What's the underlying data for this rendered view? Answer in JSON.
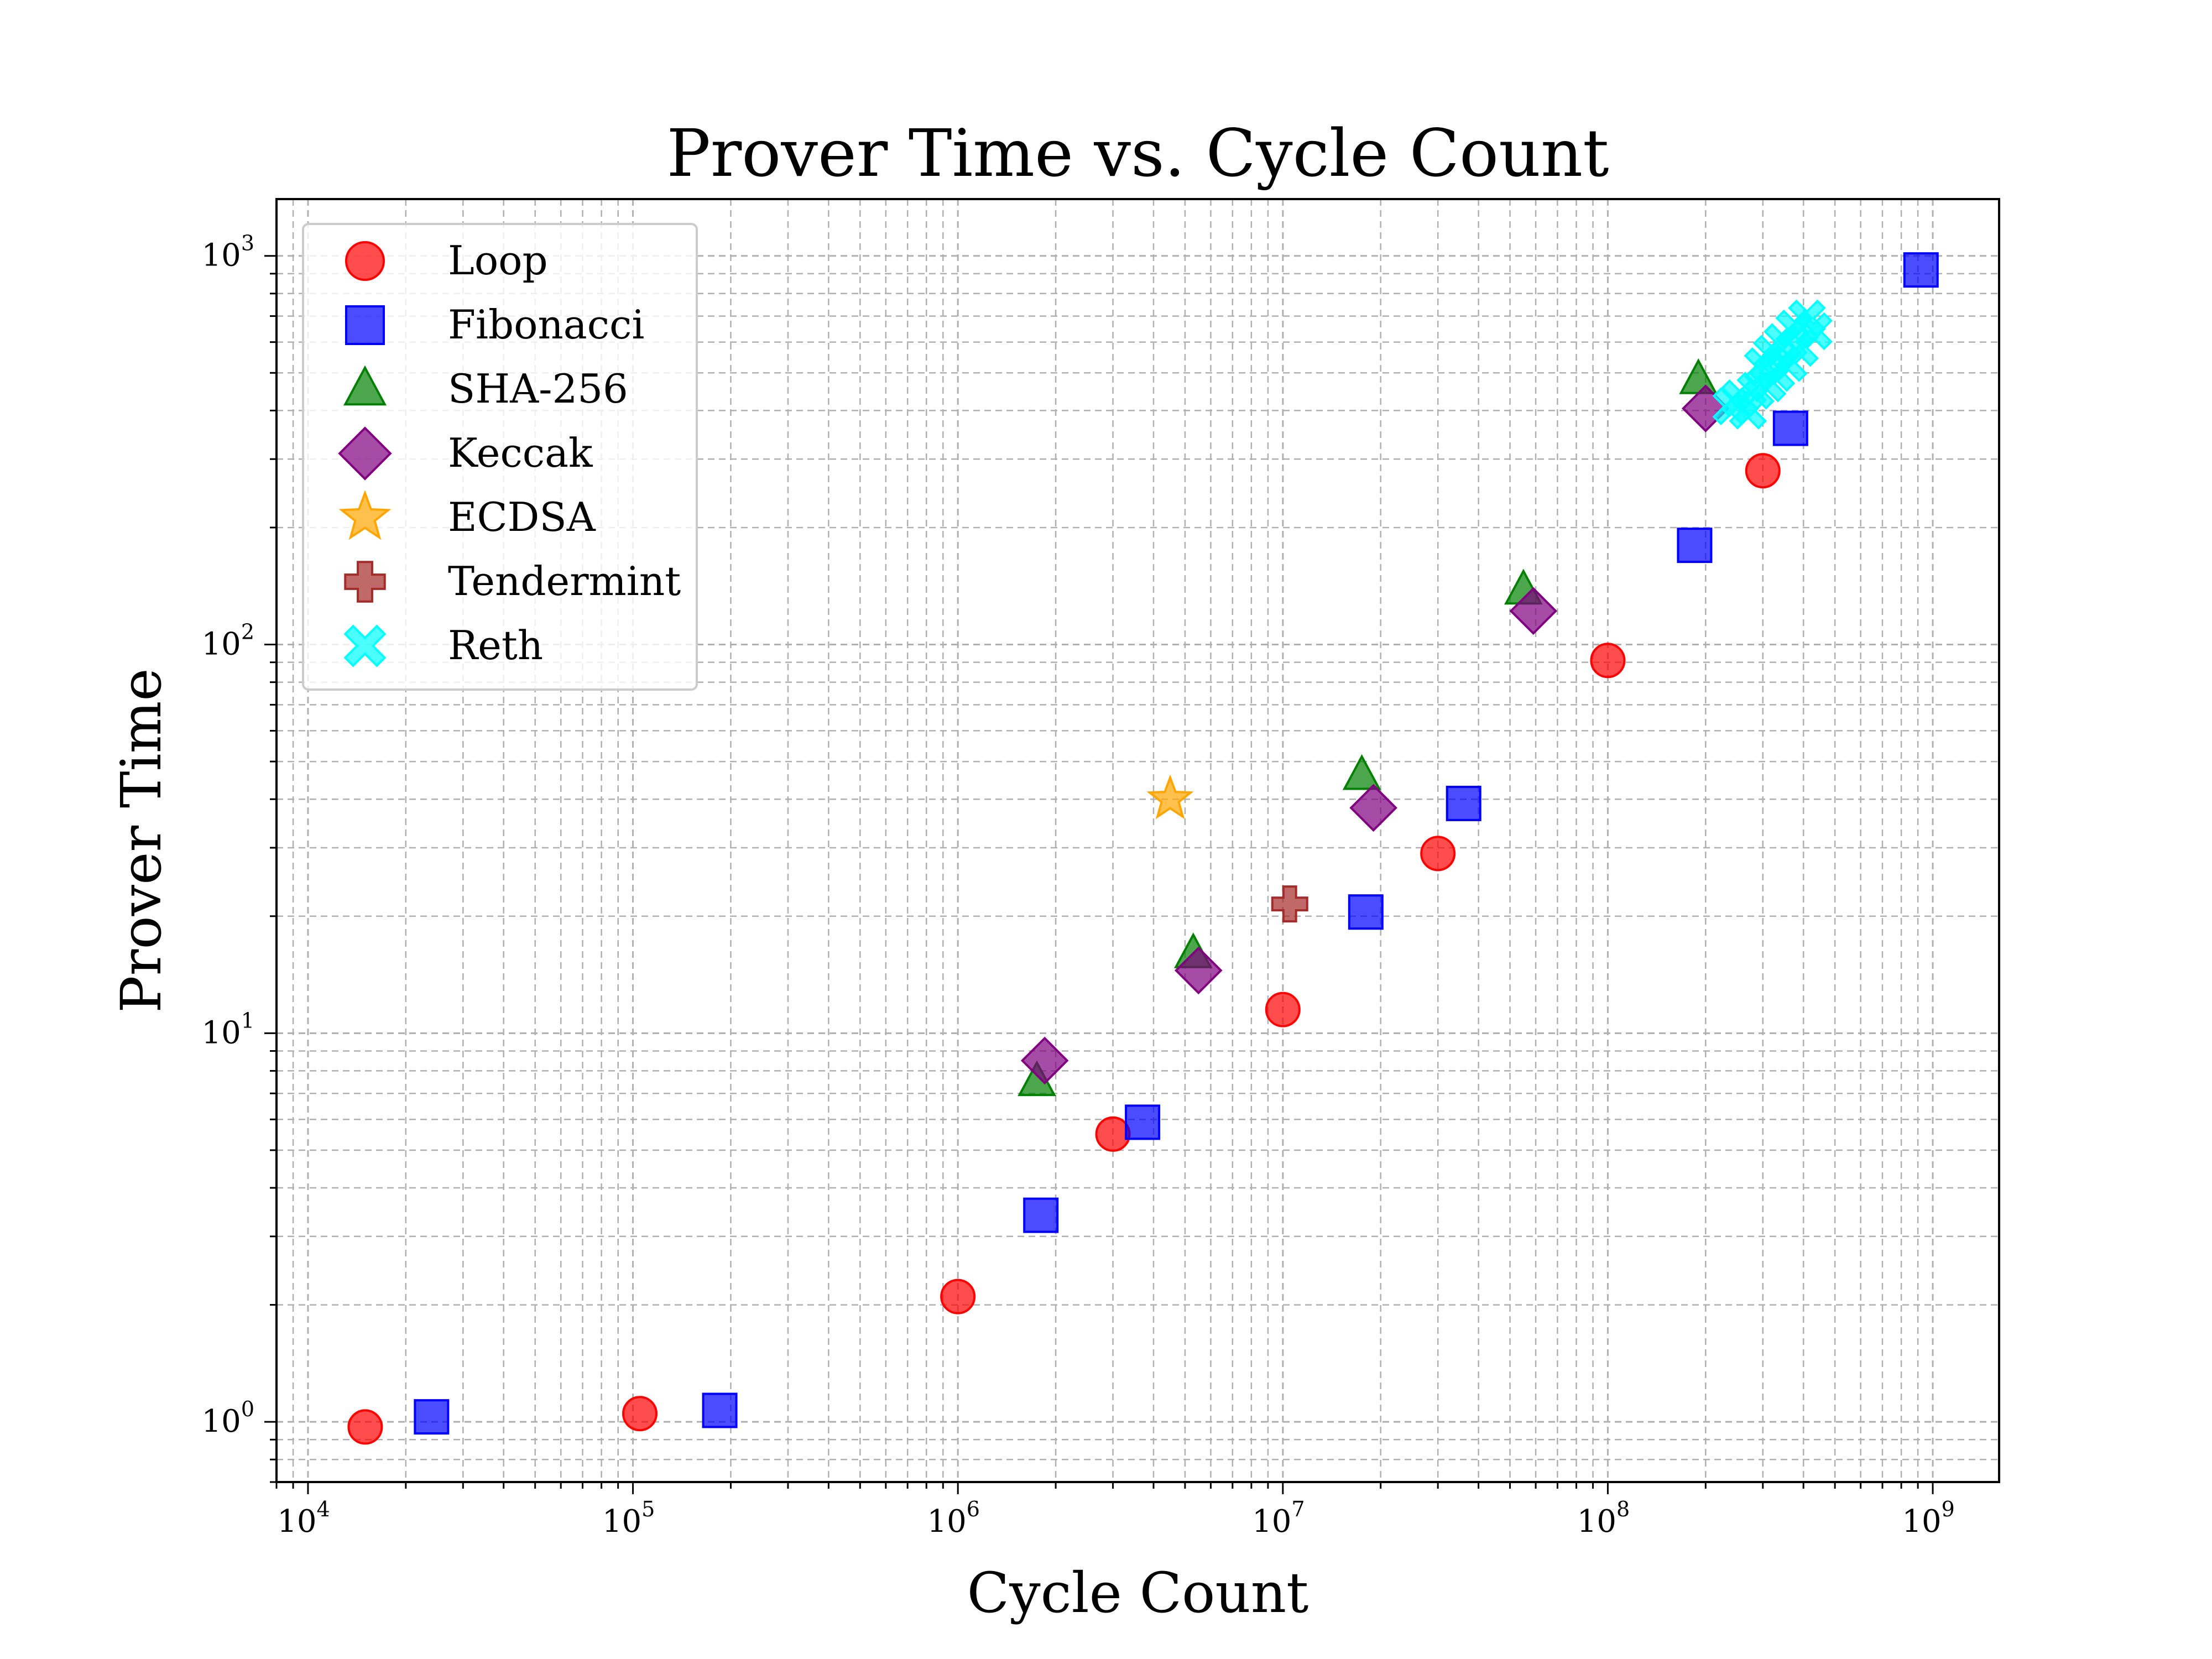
{
  "chart_data": {
    "type": "scatter",
    "title": "Prover Time vs. Cycle Count",
    "xlabel": "Cycle Count",
    "ylabel": "Prover Time",
    "x_scale": "log",
    "y_scale": "log",
    "xlim": [
      8000,
      1600000000
    ],
    "ylim": [
      0.7,
      1400
    ],
    "x_ticks": [
      {
        "base": "10",
        "exp": "4",
        "value": 10000
      },
      {
        "base": "10",
        "exp": "5",
        "value": 100000
      },
      {
        "base": "10",
        "exp": "6",
        "value": 1000000
      },
      {
        "base": "10",
        "exp": "7",
        "value": 10000000
      },
      {
        "base": "10",
        "exp": "8",
        "value": 100000000
      },
      {
        "base": "10",
        "exp": "9",
        "value": 1000000000
      }
    ],
    "y_ticks": [
      {
        "base": "10",
        "exp": "0",
        "value": 1
      },
      {
        "base": "10",
        "exp": "1",
        "value": 10
      },
      {
        "base": "10",
        "exp": "2",
        "value": 100
      },
      {
        "base": "10",
        "exp": "3",
        "value": 1000
      }
    ],
    "grid": true,
    "legend_position": "top-left",
    "series": [
      {
        "name": "Loop",
        "marker": "circle",
        "color": "#ff0000",
        "x": [
          15000,
          105000,
          1000000,
          3000000,
          10000000,
          30000000,
          100000000,
          300000000
        ],
        "y": [
          0.97,
          1.05,
          2.1,
          5.5,
          11.5,
          29,
          91,
          280
        ]
      },
      {
        "name": "Fibonacci",
        "marker": "square",
        "color": "#0000ff",
        "x": [
          24000,
          185000,
          1800000,
          3700000,
          18000000,
          36000000,
          185000000,
          365000000,
          920000000
        ],
        "y": [
          1.03,
          1.07,
          3.4,
          5.9,
          20.5,
          39,
          180,
          360,
          920
        ]
      },
      {
        "name": "SHA-256",
        "marker": "triangle",
        "color": "#008000",
        "x": [
          1750000,
          5300000,
          17500000,
          55000000,
          190000000
        ],
        "y": [
          7.5,
          16,
          46,
          138,
          480
        ]
      },
      {
        "name": "Keccak",
        "marker": "diamond",
        "color": "#800080",
        "x": [
          1850000,
          5500000,
          19000000,
          59000000,
          200000000
        ],
        "y": [
          8.5,
          14.5,
          38,
          122,
          405
        ]
      },
      {
        "name": "ECDSA",
        "marker": "star",
        "color": "#ffa500",
        "x": [
          4500000
        ],
        "y": [
          40
        ]
      },
      {
        "name": "Tendermint",
        "marker": "plus",
        "color": "#a52a2a",
        "x": [
          10500000
        ],
        "y": [
          21.5
        ]
      },
      {
        "name": "Reth",
        "marker": "x",
        "color": "#00ffff",
        "x": [
          240000000,
          255000000,
          270000000,
          285000000,
          300000000,
          310000000,
          320000000,
          330000000,
          345000000,
          360000000,
          375000000,
          390000000,
          410000000,
          430000000
        ],
        "y": [
          410,
          430,
          400,
          450,
          520,
          470,
          560,
          500,
          600,
          530,
          650,
          580,
          690,
          640
        ]
      }
    ]
  }
}
